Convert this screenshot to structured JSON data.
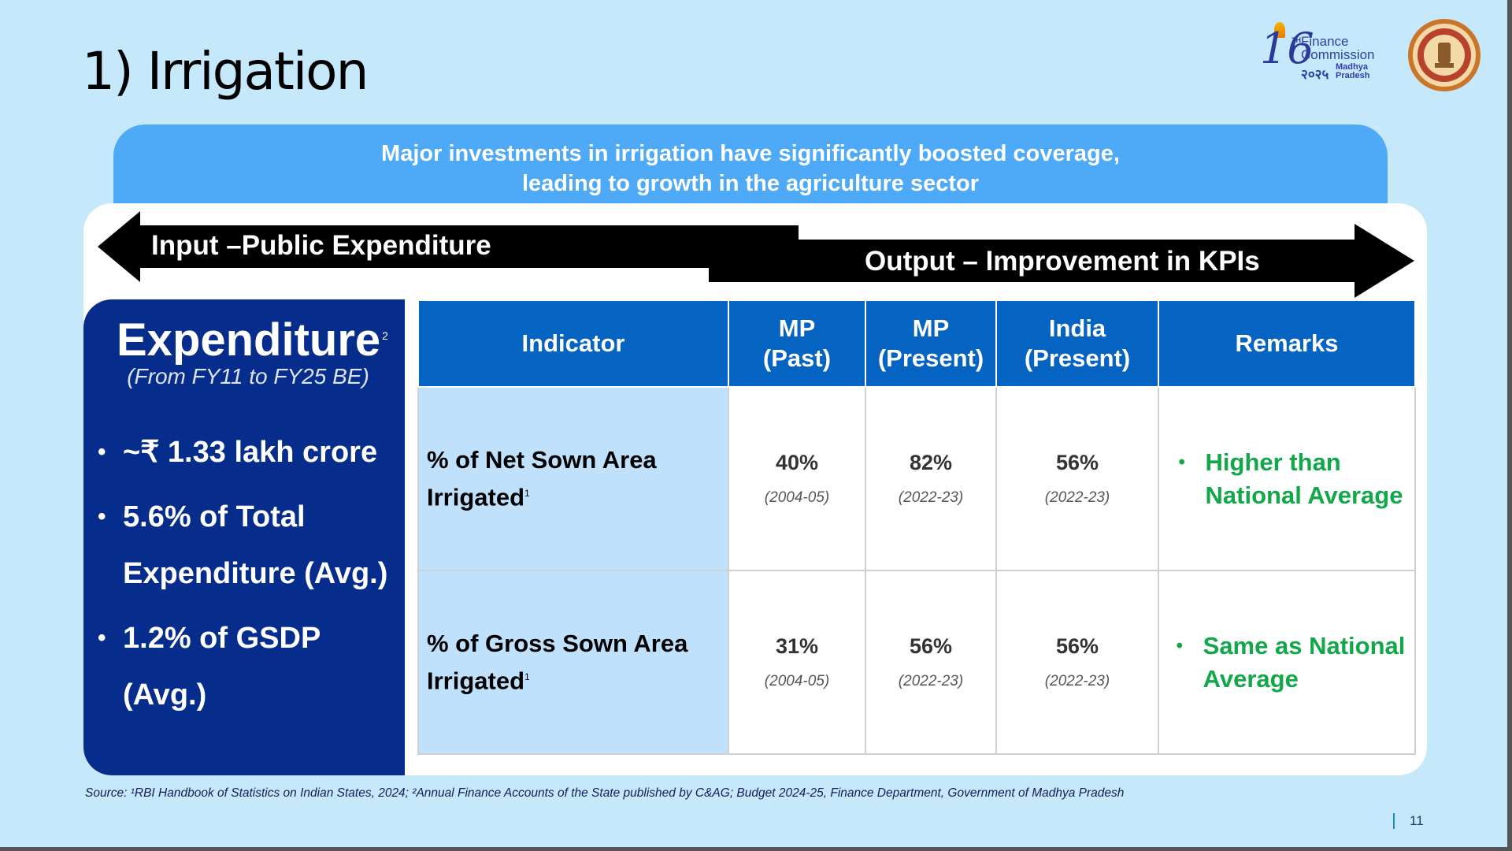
{
  "slide": {
    "title": "1) Irrigation",
    "page_number": "11"
  },
  "logo": {
    "number": "16",
    "superscript": "TH",
    "line1": "Finance",
    "line2": "Commission",
    "year": "२०२५",
    "state_line1": "Madhya",
    "state_line2": "Pradesh"
  },
  "banner": {
    "line1": "Major investments in irrigation have significantly boosted coverage,",
    "line2": "leading to growth in the agriculture sector"
  },
  "arrows": {
    "input_label": "Input –Public Expenditure",
    "output_label": "Output – Improvement in KPIs"
  },
  "expenditure": {
    "title": "Expenditure",
    "title_sup": "2",
    "subtitle": "(From FY11 to FY25 BE)",
    "bullets": [
      "~₹ 1.33 lakh crore",
      "5.6% of Total Expenditure (Avg.)",
      "1.2% of GSDP (Avg.)"
    ]
  },
  "table": {
    "headers": [
      "Indicator",
      "MP (Past)",
      "MP (Present)",
      "India (Present)",
      "Remarks"
    ],
    "header_lines": {
      "indicator": "Indicator",
      "mp_past_1": "MP",
      "mp_past_2": "(Past)",
      "mp_present_1": "MP",
      "mp_present_2": "(Present)",
      "india_1": "India",
      "india_2": "(Present)",
      "remarks": "Remarks"
    },
    "rows": [
      {
        "indicator_line1": "% of Net Sown Area",
        "indicator_line2": "Irrigated",
        "sup": "1",
        "mp_past": "40%",
        "mp_past_year": "(2004-05)",
        "mp_present": "82%",
        "mp_present_year": "(2022-23)",
        "india": "56%",
        "india_year": "(2022-23)",
        "remark_line1": "Higher than",
        "remark_line2": "National Average"
      },
      {
        "indicator_line1": "% of Gross Sown Area",
        "indicator_line2": "Irrigated",
        "sup": "1",
        "mp_past": "31%",
        "mp_past_year": "(2004-05)",
        "mp_present": "56%",
        "mp_present_year": "(2022-23)",
        "india": "56%",
        "india_year": "(2022-23)",
        "remark_line1": "Same as National",
        "remark_line2": "Average"
      }
    ]
  },
  "source": "Source: ¹RBI Handbook of Statistics on Indian States, 2024; ²Annual Finance Accounts of the State published by C&AG; Budget 2024-25, Finance Department, Government of Madhya Pradesh",
  "colors": {
    "background": "#c5e8fb",
    "banner": "#4eaaf6",
    "exp_box": "#062d8b",
    "table_header": "#0563c1",
    "indicator_cell": "#c0e1fb",
    "remark_green": "#12a84a"
  }
}
